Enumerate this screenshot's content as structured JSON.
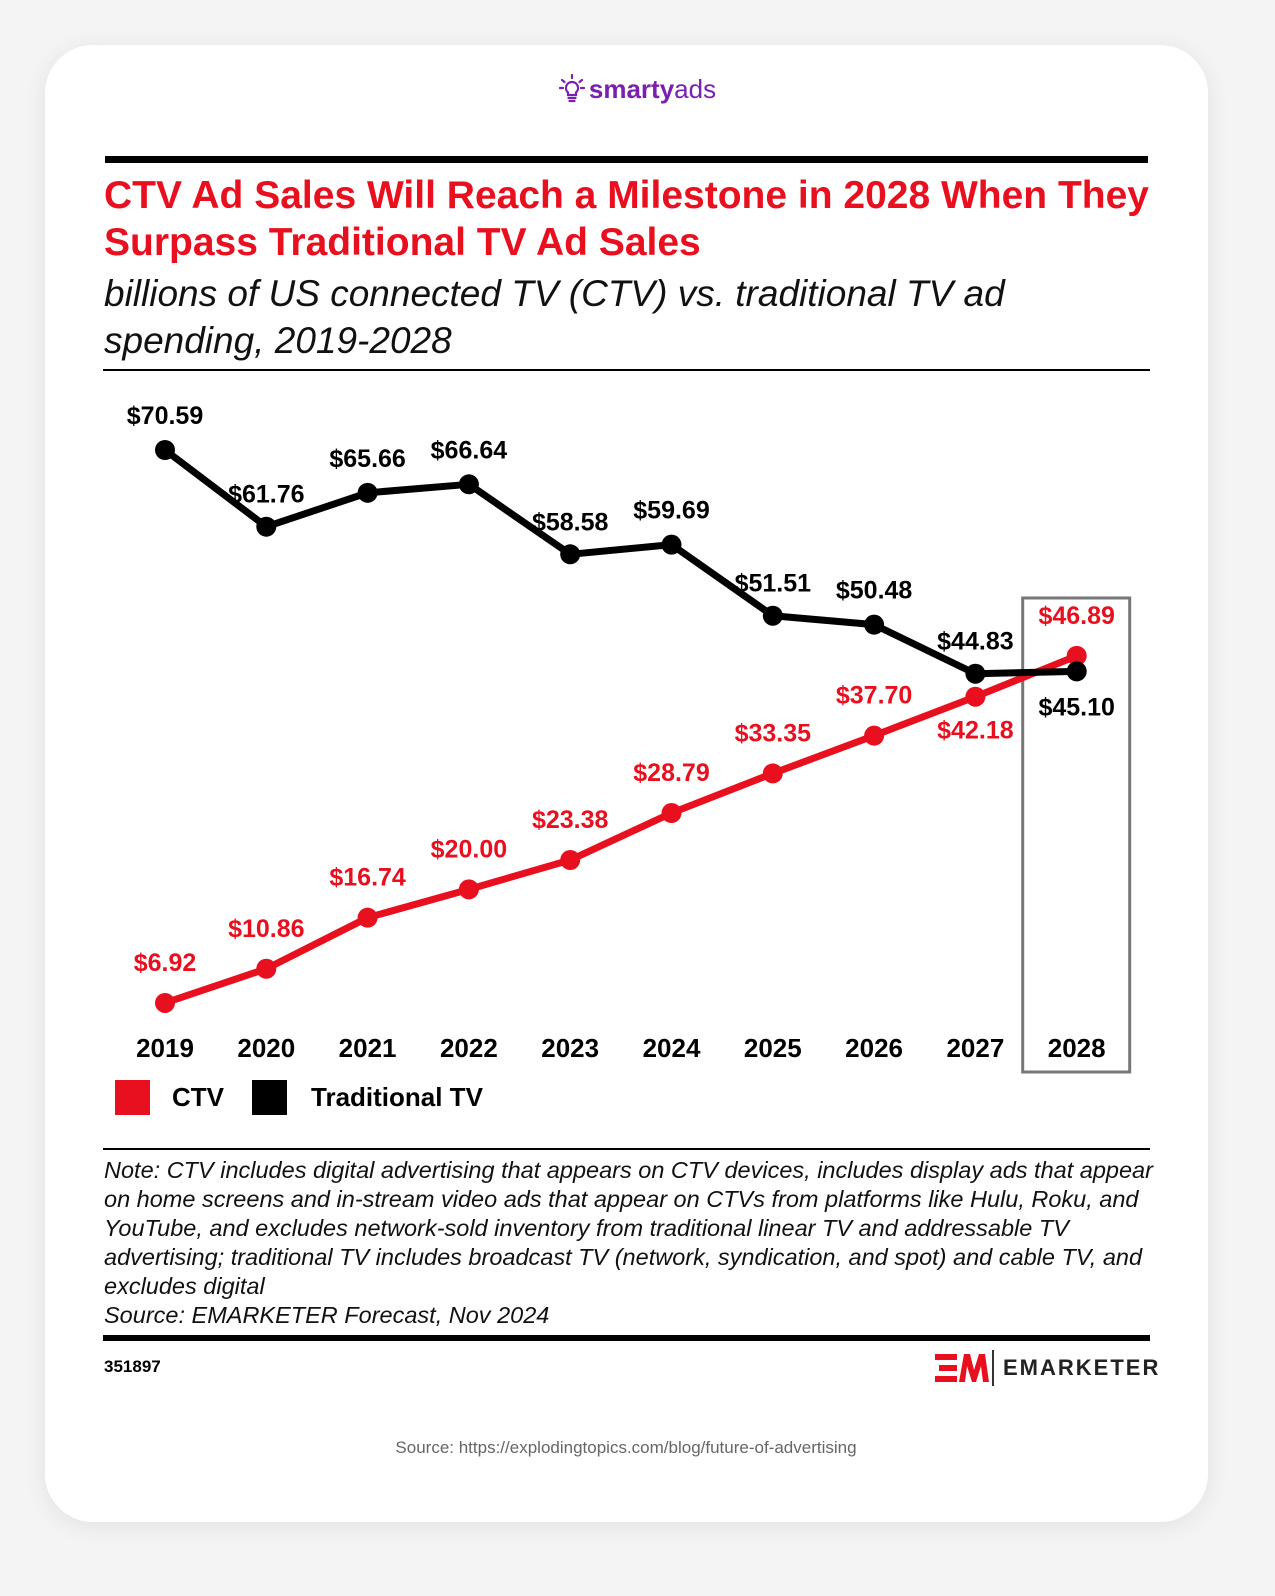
{
  "brand": {
    "logo_part1": "smarty",
    "logo_part2": "ads",
    "icon": "lightbulb-icon"
  },
  "header": {
    "title": "CTV Ad Sales Will Reach a Milestone in 2028 When They Surpass Traditional TV Ad Sales",
    "subtitle": "billions of US connected TV (CTV) vs. traditional TV ad spending, 2019-2028"
  },
  "chart_data": {
    "type": "line",
    "title": "CTV Ad Sales Will Reach a Milestone in 2028 When They Surpass Traditional TV Ad Sales",
    "subtitle": "billions of US connected TV (CTV) vs. traditional TV ad spending, 2019-2028",
    "xlabel": "",
    "ylabel": "",
    "grid": false,
    "legend_placement": "bottom-left",
    "categories": [
      "2019",
      "2020",
      "2021",
      "2022",
      "2023",
      "2024",
      "2025",
      "2026",
      "2027",
      "2028"
    ],
    "highlight_category": "2028",
    "series": [
      {
        "name": "CTV",
        "color": "#e8101f",
        "values": [
          6.92,
          10.86,
          16.74,
          20.0,
          23.38,
          28.79,
          33.35,
          37.7,
          42.18,
          46.89
        ],
        "labels": [
          "$6.92",
          "$10.86",
          "$16.74",
          "$20.00",
          "$23.38",
          "$28.79",
          "$33.35",
          "$37.70",
          "$42.18",
          "$46.89"
        ]
      },
      {
        "name": "Traditional TV",
        "color": "#000000",
        "values": [
          70.59,
          61.76,
          65.66,
          66.64,
          58.58,
          59.69,
          51.51,
          50.48,
          44.83,
          45.1
        ],
        "labels": [
          "$70.59",
          "$61.76",
          "$65.66",
          "$66.64",
          "$58.58",
          "$59.69",
          "$51.51",
          "$50.48",
          "$44.83",
          "$45.10"
        ]
      }
    ]
  },
  "legend": {
    "ctv": "CTV",
    "traditional": "Traditional TV"
  },
  "note": "Note: CTV includes digital advertising that appears on CTV devices, includes display ads that appear on home screens and in-stream video ads that appear on CTVs from platforms like Hulu, Roku, and YouTube, and excludes network-sold inventory from traditional linear TV and addressable TV advertising; traditional TV includes broadcast TV (network, syndication, and spot) and cable TV, and excludes digital",
  "source_line": "Source: EMARKETER Forecast, Nov 2024",
  "chart_id": "351897",
  "publisher": "EMARKETER",
  "page_source": "Source: https://explodingtopics.com/blog/future-of-advertising"
}
